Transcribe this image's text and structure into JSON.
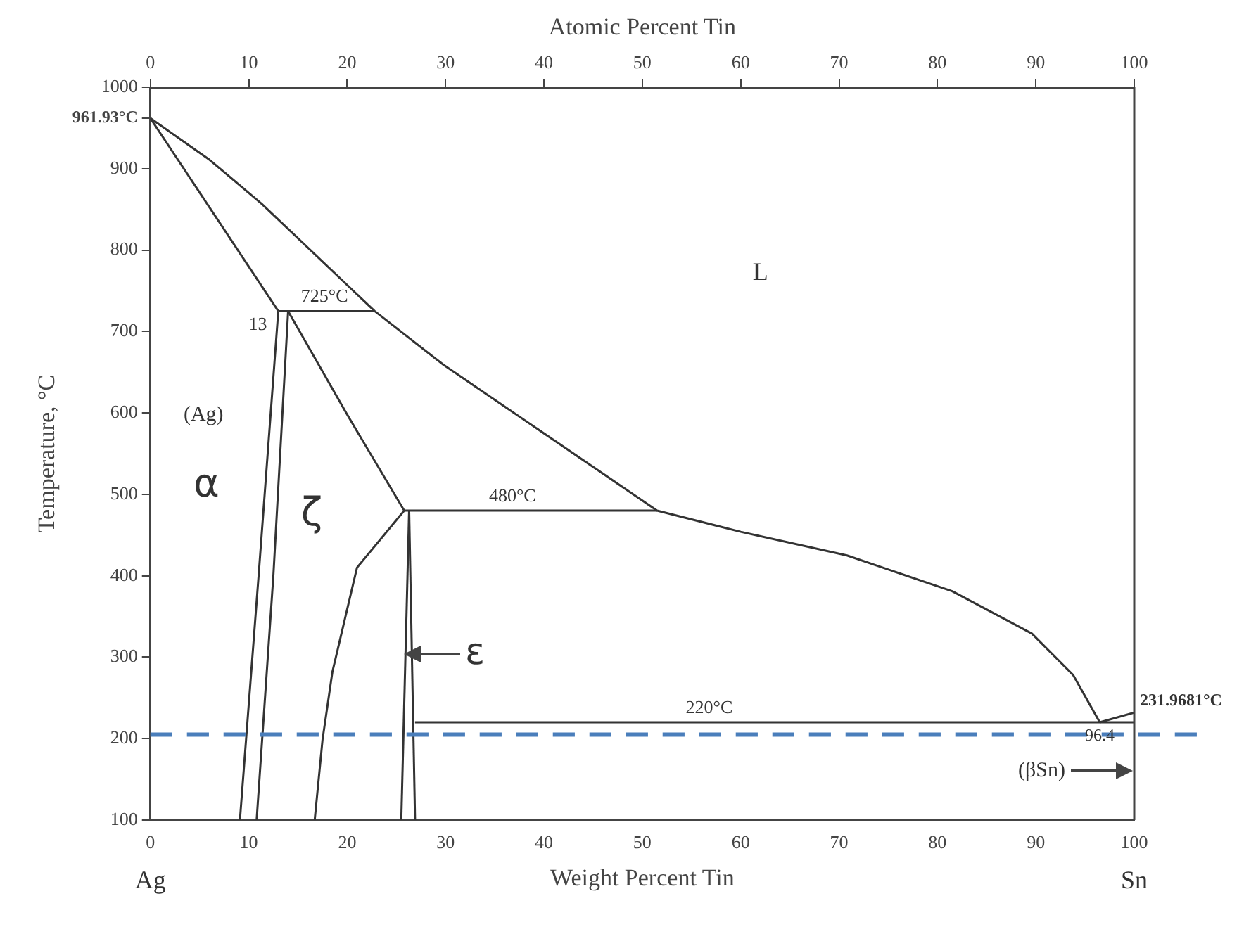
{
  "chart_data": {
    "type": "line",
    "xlabel": "Weight Percent Tin",
    "x2label": "Atomic Percent Tin",
    "ylabel": "Temperature, °C",
    "xlim": [
      0,
      100
    ],
    "xticks": [
      0,
      10,
      20,
      30,
      40,
      50,
      60,
      70,
      80,
      90,
      100
    ],
    "x2lim": [
      0,
      100
    ],
    "x2ticks": [
      0,
      10,
      20,
      30,
      40,
      50,
      60,
      70,
      80,
      90,
      100
    ],
    "ylim": [
      100,
      1000
    ],
    "yticks": [
      100,
      200,
      300,
      400,
      500,
      600,
      700,
      800,
      900,
      {
        "value": 961.93,
        "label": "961.93°C"
      },
      1000
    ],
    "grid": false,
    "legend": false,
    "marker": "none",
    "line_style": "solid",
    "series": [
      {
        "color": "#333333",
        "x": [
          0,
          6,
          11.3,
          22.8,
          29.8,
          34.9,
          51.5,
          60,
          70.8,
          81.5,
          89.6,
          93.8,
          96.5
        ],
        "values": [
          961.93,
          911,
          857,
          725,
          659,
          617,
          480,
          454,
          425,
          381,
          329,
          278,
          220
        ]
      },
      {
        "color": "#333333",
        "x": [
          96.5,
          100
        ],
        "values": [
          220,
          231.97
        ]
      },
      {
        "color": "#333333",
        "x": [
          0,
          13
        ],
        "values": [
          961.93,
          725
        ]
      },
      {
        "color": "#333333",
        "x": [
          13,
          22.8
        ],
        "values": [
          725,
          725
        ]
      },
      {
        "color": "#333333",
        "x": [
          13,
          11,
          9.1
        ],
        "values": [
          725,
          400,
          100
        ]
      },
      {
        "color": "#333333",
        "x": [
          14,
          12.5,
          10.8
        ],
        "values": [
          725,
          400,
          100
        ]
      },
      {
        "color": "#333333",
        "x": [
          14,
          19.9,
          25.8
        ],
        "values": [
          725,
          600,
          480
        ]
      },
      {
        "color": "#333333",
        "x": [
          25.8,
          21,
          18.5,
          17.5,
          16.7
        ],
        "values": [
          480,
          410,
          282,
          199,
          100
        ]
      },
      {
        "color": "#333333",
        "x": [
          25.8,
          51.5
        ],
        "values": [
          480,
          480
        ]
      },
      {
        "color": "#333333",
        "x": [
          26.3,
          25.5
        ],
        "values": [
          480,
          100
        ]
      },
      {
        "color": "#333333",
        "x": [
          26.3,
          26.9
        ],
        "values": [
          480,
          100
        ]
      },
      {
        "color": "#333333",
        "x": [
          26.9,
          100
        ],
        "values": [
          220,
          220
        ]
      }
    ],
    "ref_lines": [
      {
        "axis": "y",
        "value": 205,
        "color": "#4a7ebb",
        "line_style": "dashed"
      }
    ],
    "annotations": [
      "L",
      "(Ag)",
      "α",
      "ζ",
      "ε",
      "(βSn)",
      "Ag",
      "Sn",
      {
        "text": "231.9681°C",
        "x": 100,
        "y": 231.97
      },
      {
        "text": "725°C",
        "x": 17.7,
        "y": 725
      },
      {
        "text": "13",
        "x": 13,
        "y": 725
      },
      {
        "text": "480°C",
        "x": 36.8,
        "y": 480
      },
      {
        "text": "220°C",
        "x": 56.8,
        "y": 220
      },
      {
        "text": "96.4",
        "x": 96.5,
        "y": 220
      }
    ]
  }
}
